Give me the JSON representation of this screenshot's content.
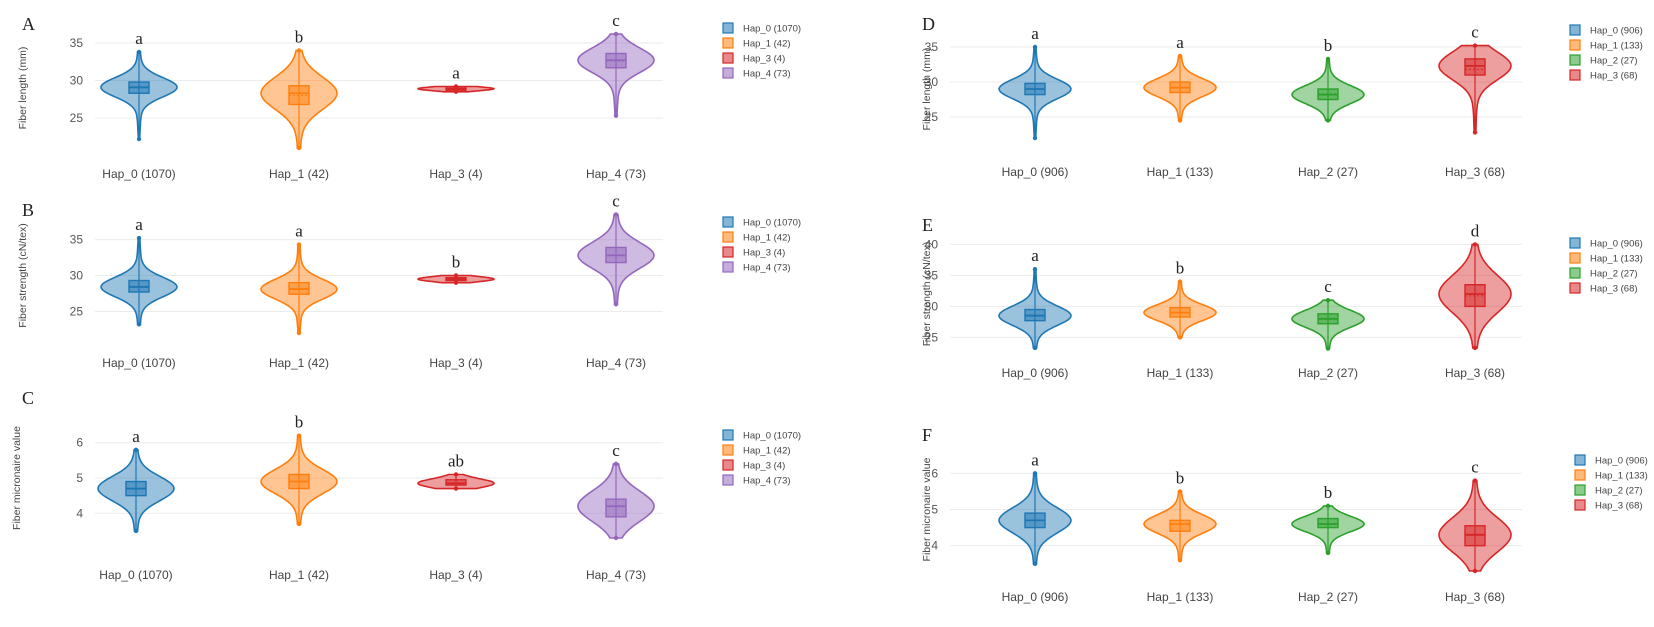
{
  "colors": {
    "Hap_0": "#1f77b4",
    "Hap_1": "#ff7f0e",
    "Hap_2": "#2ca02c",
    "Hap_3": "#d62728",
    "Hap_4": "#9467bd"
  },
  "chart_data": [
    {
      "panel": "A",
      "type": "violin",
      "ylabel": "Fiber length (mm)",
      "ylim": [
        21,
        37
      ],
      "yticks": [
        25,
        30,
        35
      ],
      "legend": [
        "Hap_0 (1070)",
        "Hap_1 (42)",
        "Hap_3 (4)",
        "Hap_4 (73)"
      ],
      "groups": [
        {
          "label": "Hap_0 (1070)",
          "hap": "Hap_0",
          "sig": "a",
          "min": 22.2,
          "max": 33.8,
          "q1": 28.3,
          "median": 29.1,
          "q3": 29.8,
          "mean": 29.0
        },
        {
          "label": "Hap_1 (42)",
          "hap": "Hap_1",
          "sig": "b",
          "min": 21.0,
          "max": 34.0,
          "q1": 26.8,
          "median": 28.3,
          "q3": 29.3,
          "mean": 28.0
        },
        {
          "label": "Hap_3 (4)",
          "hap": "Hap_3",
          "sig": "a",
          "min": 28.5,
          "max": 29.2,
          "q1": 28.7,
          "median": 28.9,
          "q3": 29.0,
          "mean": 28.9
        },
        {
          "label": "Hap_4 (73)",
          "hap": "Hap_4",
          "sig": "c",
          "min": 25.3,
          "max": 36.2,
          "q1": 31.7,
          "median": 32.7,
          "q3": 33.6,
          "mean": 32.6
        }
      ]
    },
    {
      "panel": "B",
      "type": "violin",
      "ylabel": "Fiber strength (cN/tex)",
      "ylim": [
        22,
        38
      ],
      "yticks": [
        25,
        30,
        35
      ],
      "legend": [
        "Hap_0 (1070)",
        "Hap_1 (42)",
        "Hap_3 (4)",
        "Hap_4 (73)"
      ],
      "groups": [
        {
          "label": "Hap_0 (1070)",
          "hap": "Hap_0",
          "sig": "a",
          "min": 23.2,
          "max": 35.2,
          "q1": 27.7,
          "median": 28.4,
          "q3": 29.3,
          "mean": 28.5
        },
        {
          "label": "Hap_1 (42)",
          "hap": "Hap_1",
          "sig": "a",
          "min": 22.0,
          "max": 34.3,
          "q1": 27.4,
          "median": 28.1,
          "q3": 29.0,
          "mean": 28.2
        },
        {
          "label": "Hap_3 (4)",
          "hap": "Hap_3",
          "sig": "b",
          "min": 29.0,
          "max": 30.0,
          "q1": 29.3,
          "median": 29.5,
          "q3": 29.7,
          "mean": 29.5
        },
        {
          "label": "Hap_4 (73)",
          "hap": "Hap_4",
          "sig": "c",
          "min": 26.0,
          "max": 38.5,
          "q1": 31.8,
          "median": 32.8,
          "q3": 33.9,
          "mean": 32.8
        }
      ]
    },
    {
      "panel": "C",
      "type": "violin",
      "ylabel": "Fiber micronaire value",
      "ylim": [
        3.3,
        6.7
      ],
      "yticks": [
        4,
        5,
        6
      ],
      "legend": [
        "Hap_0 (1070)",
        "Hap_1 (42)",
        "Hap_3 (4)",
        "Hap_4 (73)"
      ],
      "groups": [
        {
          "label": "Hap_0 (1070)",
          "hap": "Hap_0",
          "sig": "a",
          "min": 3.5,
          "max": 5.8,
          "q1": 4.5,
          "median": 4.7,
          "q3": 4.9,
          "mean": 4.7
        },
        {
          "label": "Hap_1 (42)",
          "hap": "Hap_1",
          "sig": "b",
          "min": 3.7,
          "max": 6.2,
          "q1": 4.7,
          "median": 4.9,
          "q3": 5.1,
          "mean": 4.9
        },
        {
          "label": "Hap_3 (4)",
          "hap": "Hap_3",
          "sig": "ab",
          "min": 4.7,
          "max": 5.1,
          "q1": 4.8,
          "median": 4.85,
          "q3": 4.95,
          "mean": 4.85
        },
        {
          "label": "Hap_4 (73)",
          "hap": "Hap_4",
          "sig": "c",
          "min": 3.3,
          "max": 5.4,
          "q1": 3.9,
          "median": 4.2,
          "q3": 4.4,
          "mean": 4.2
        }
      ]
    },
    {
      "panel": "D",
      "type": "violin",
      "ylabel": "Fiber length (mm)",
      "ylim": [
        21,
        37
      ],
      "yticks": [
        25,
        30,
        35
      ],
      "legend": [
        "Hap_0 (906)",
        "Hap_1 (133)",
        "Hap_2 (27)",
        "Hap_3 (68)"
      ],
      "groups": [
        {
          "label": "Hap_0 (906)",
          "hap": "Hap_0",
          "sig": "a",
          "min": 22.0,
          "max": 35.0,
          "q1": 28.2,
          "median": 29.0,
          "q3": 29.8,
          "mean": 29.0
        },
        {
          "label": "Hap_1 (133)",
          "hap": "Hap_1",
          "sig": "a",
          "min": 24.5,
          "max": 33.7,
          "q1": 28.5,
          "median": 29.2,
          "q3": 30.0,
          "mean": 29.2
        },
        {
          "label": "Hap_2 (27)",
          "hap": "Hap_2",
          "sig": "b",
          "min": 24.5,
          "max": 33.3,
          "q1": 27.5,
          "median": 28.2,
          "q3": 29.0,
          "mean": 28.3
        },
        {
          "label": "Hap_3 (68)",
          "hap": "Hap_3",
          "sig": "c",
          "min": 22.8,
          "max": 35.2,
          "q1": 31.0,
          "median": 32.3,
          "q3": 33.3,
          "mean": 31.8
        }
      ]
    },
    {
      "panel": "E",
      "type": "violin",
      "ylabel": "Fiber strength (cN/tex)",
      "ylim": [
        22,
        42
      ],
      "yticks": [
        25,
        30,
        35,
        40
      ],
      "legend": [
        "Hap_0 (906)",
        "Hap_1 (133)",
        "Hap_2 (27)",
        "Hap_3 (68)"
      ],
      "groups": [
        {
          "label": "Hap_0 (906)",
          "hap": "Hap_0",
          "sig": "a",
          "min": 23.3,
          "max": 36.0,
          "q1": 27.7,
          "median": 28.5,
          "q3": 29.5,
          "mean": 28.6
        },
        {
          "label": "Hap_1 (133)",
          "hap": "Hap_1",
          "sig": "b",
          "min": 25.0,
          "max": 34.0,
          "q1": 28.3,
          "median": 29.0,
          "q3": 29.8,
          "mean": 29.0
        },
        {
          "label": "Hap_2 (27)",
          "hap": "Hap_2",
          "sig": "c",
          "min": 23.2,
          "max": 31.0,
          "q1": 27.2,
          "median": 28.0,
          "q3": 28.8,
          "mean": 28.0
        },
        {
          "label": "Hap_3 (68)",
          "hap": "Hap_3",
          "sig": "d",
          "min": 23.3,
          "max": 40.0,
          "q1": 30.0,
          "median": 32.0,
          "q3": 33.5,
          "mean": 31.7
        }
      ]
    },
    {
      "panel": "F",
      "type": "violin",
      "ylabel": "Fiber micronaire value",
      "ylim": [
        3.3,
        6.7
      ],
      "yticks": [
        4,
        5,
        6
      ],
      "legend": [
        "Hap_0 (906)",
        "Hap_1 (133)",
        "Hap_2 (27)",
        "Hap_3 (68)"
      ],
      "groups": [
        {
          "label": "Hap_0 (906)",
          "hap": "Hap_0",
          "sig": "a",
          "min": 3.5,
          "max": 6.0,
          "q1": 4.5,
          "median": 4.7,
          "q3": 4.9,
          "mean": 4.7
        },
        {
          "label": "Hap_1 (133)",
          "hap": "Hap_1",
          "sig": "b",
          "min": 3.6,
          "max": 5.5,
          "q1": 4.4,
          "median": 4.6,
          "q3": 4.7,
          "mean": 4.6
        },
        {
          "label": "Hap_2 (27)",
          "hap": "Hap_2",
          "sig": "b",
          "min": 3.8,
          "max": 5.1,
          "q1": 4.5,
          "median": 4.6,
          "q3": 4.75,
          "mean": 4.6
        },
        {
          "label": "Hap_3 (68)",
          "hap": "Hap_3",
          "sig": "c",
          "min": 3.3,
          "max": 5.8,
          "q1": 4.0,
          "median": 4.3,
          "q3": 4.55,
          "mean": 4.3
        }
      ]
    }
  ]
}
